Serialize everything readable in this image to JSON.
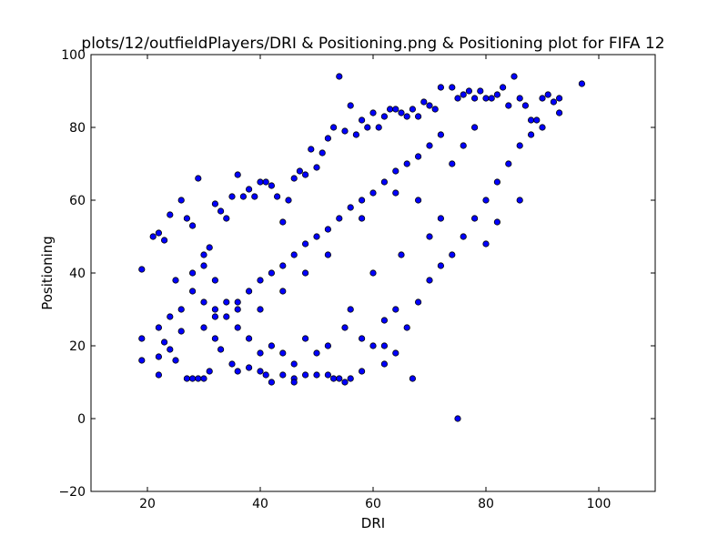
{
  "chart_data": {
    "type": "scatter",
    "title": "plots/12/outfieldPlayers/DRI & Positioning.png & Positioning plot for FIFA 12",
    "xlabel": "DRI",
    "ylabel": "Positioning",
    "xlim": [
      10,
      110
    ],
    "ylim": [
      -20,
      100
    ],
    "xticks": [
      20,
      40,
      60,
      80,
      100
    ],
    "yticks": [
      -20,
      0,
      20,
      40,
      60,
      80,
      100
    ],
    "marker_color": "#0000ff",
    "marker_edge_color": "#000000",
    "grid": false,
    "legend": "none",
    "points": [
      [
        19,
        41
      ],
      [
        19,
        22
      ],
      [
        19,
        16
      ],
      [
        21,
        50
      ],
      [
        22,
        51
      ],
      [
        22,
        17
      ],
      [
        22,
        12
      ],
      [
        23,
        49
      ],
      [
        23,
        21
      ],
      [
        24,
        56
      ],
      [
        24,
        19
      ],
      [
        25,
        38
      ],
      [
        25,
        16
      ],
      [
        26,
        60
      ],
      [
        26,
        24
      ],
      [
        27,
        55
      ],
      [
        27,
        11
      ],
      [
        28,
        53
      ],
      [
        28,
        11
      ],
      [
        29,
        66
      ],
      [
        29,
        11
      ],
      [
        30,
        11
      ],
      [
        30,
        45
      ],
      [
        31,
        13
      ],
      [
        31,
        47
      ],
      [
        32,
        59
      ],
      [
        32,
        22
      ],
      [
        33,
        57
      ],
      [
        33,
        19
      ],
      [
        34,
        55
      ],
      [
        35,
        61
      ],
      [
        35,
        15
      ],
      [
        36,
        67
      ],
      [
        36,
        13
      ],
      [
        37,
        61
      ],
      [
        38,
        63
      ],
      [
        38,
        14
      ],
      [
        39,
        61
      ],
      [
        40,
        65
      ],
      [
        40,
        13
      ],
      [
        41,
        65
      ],
      [
        41,
        12
      ],
      [
        42,
        64
      ],
      [
        42,
        10
      ],
      [
        43,
        61
      ],
      [
        44,
        54
      ],
      [
        44,
        12
      ],
      [
        45,
        60
      ],
      [
        46,
        66
      ],
      [
        46,
        11
      ],
      [
        46,
        10
      ],
      [
        47,
        68
      ],
      [
        48,
        67
      ],
      [
        48,
        12
      ],
      [
        49,
        74
      ],
      [
        50,
        69
      ],
      [
        50,
        12
      ],
      [
        51,
        73
      ],
      [
        52,
        77
      ],
      [
        52,
        12
      ],
      [
        53,
        80
      ],
      [
        53,
        11
      ],
      [
        54,
        94
      ],
      [
        54,
        11
      ],
      [
        55,
        79
      ],
      [
        55,
        10
      ],
      [
        56,
        86
      ],
      [
        56,
        11
      ],
      [
        57,
        78
      ],
      [
        58,
        82
      ],
      [
        58,
        13
      ],
      [
        59,
        80
      ],
      [
        60,
        84
      ],
      [
        61,
        80
      ],
      [
        62,
        83
      ],
      [
        62,
        15
      ],
      [
        63,
        85
      ],
      [
        64,
        85
      ],
      [
        65,
        84
      ],
      [
        66,
        83
      ],
      [
        67,
        11
      ],
      [
        67,
        85
      ],
      [
        68,
        83
      ],
      [
        69,
        87
      ],
      [
        70,
        86
      ],
      [
        71,
        85
      ],
      [
        72,
        91
      ],
      [
        74,
        91
      ],
      [
        75,
        0
      ],
      [
        75,
        88
      ],
      [
        76,
        89
      ],
      [
        77,
        90
      ],
      [
        78,
        88
      ],
      [
        79,
        90
      ],
      [
        80,
        88
      ],
      [
        80,
        48
      ],
      [
        81,
        88
      ],
      [
        82,
        89
      ],
      [
        82,
        54
      ],
      [
        83,
        91
      ],
      [
        84,
        86
      ],
      [
        85,
        94
      ],
      [
        86,
        88
      ],
      [
        86,
        60
      ],
      [
        87,
        86
      ],
      [
        88,
        82
      ],
      [
        89,
        82
      ],
      [
        90,
        88
      ],
      [
        91,
        89
      ],
      [
        92,
        87
      ],
      [
        93,
        88
      ],
      [
        93,
        84
      ],
      [
        97,
        92
      ],
      [
        55,
        25
      ],
      [
        58,
        22
      ],
      [
        60,
        20
      ],
      [
        62,
        27
      ],
      [
        64,
        30
      ],
      [
        56,
        30
      ],
      [
        52,
        20
      ],
      [
        50,
        18
      ],
      [
        48,
        22
      ],
      [
        46,
        15
      ],
      [
        44,
        18
      ],
      [
        42,
        20
      ],
      [
        40,
        18
      ],
      [
        38,
        22
      ],
      [
        36,
        25
      ],
      [
        34,
        28
      ],
      [
        32,
        30
      ],
      [
        30,
        32
      ],
      [
        28,
        35
      ],
      [
        26,
        30
      ],
      [
        24,
        28
      ],
      [
        22,
        25
      ],
      [
        60,
        40
      ],
      [
        65,
        45
      ],
      [
        70,
        50
      ],
      [
        72,
        55
      ],
      [
        68,
        60
      ],
      [
        64,
        62
      ],
      [
        58,
        55
      ],
      [
        52,
        45
      ],
      [
        48,
        40
      ],
      [
        44,
        35
      ],
      [
        40,
        30
      ],
      [
        36,
        32
      ],
      [
        32,
        38
      ],
      [
        30,
        42
      ],
      [
        28,
        40
      ],
      [
        62,
        20
      ],
      [
        64,
        18
      ],
      [
        66,
        25
      ],
      [
        68,
        32
      ],
      [
        70,
        38
      ],
      [
        72,
        42
      ],
      [
        74,
        45
      ],
      [
        76,
        50
      ],
      [
        78,
        55
      ],
      [
        80,
        60
      ],
      [
        82,
        65
      ],
      [
        84,
        70
      ],
      [
        86,
        75
      ],
      [
        88,
        78
      ],
      [
        90,
        80
      ],
      [
        74,
        70
      ],
      [
        76,
        75
      ],
      [
        78,
        80
      ],
      [
        72,
        78
      ],
      [
        70,
        75
      ],
      [
        68,
        72
      ],
      [
        66,
        70
      ],
      [
        64,
        68
      ],
      [
        62,
        65
      ],
      [
        60,
        62
      ],
      [
        58,
        60
      ],
      [
        56,
        58
      ],
      [
        54,
        55
      ],
      [
        52,
        52
      ],
      [
        50,
        50
      ],
      [
        48,
        48
      ],
      [
        46,
        45
      ],
      [
        44,
        42
      ],
      [
        42,
        40
      ],
      [
        40,
        38
      ],
      [
        38,
        35
      ],
      [
        36,
        30
      ],
      [
        34,
        32
      ],
      [
        32,
        28
      ],
      [
        30,
        25
      ]
    ]
  }
}
